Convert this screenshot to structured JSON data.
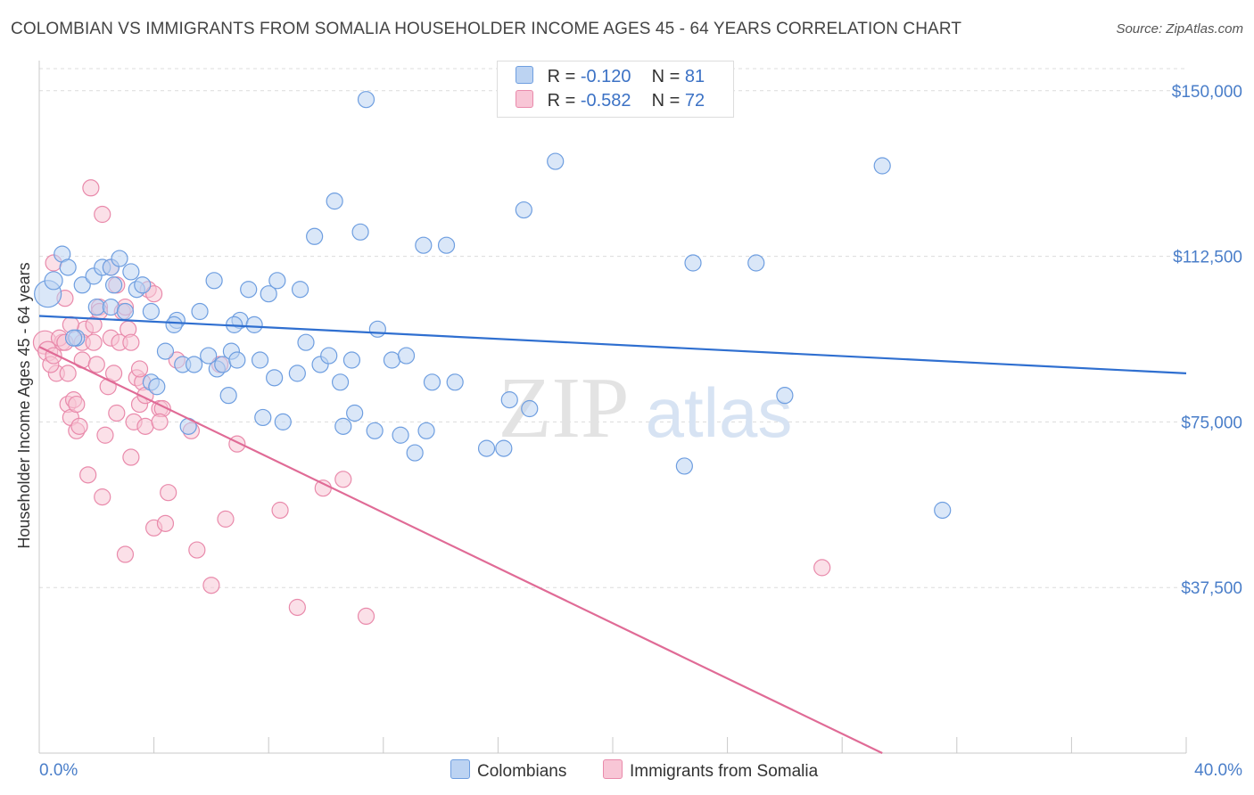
{
  "chart_data": {
    "type": "scatter",
    "title": "COLOMBIAN VS IMMIGRANTS FROM SOMALIA HOUSEHOLDER INCOME AGES 45 - 64 YEARS CORRELATION CHART",
    "source": "Source: ZipAtlas.com",
    "xlabel": "",
    "ylabel": "Householder Income Ages 45 - 64 years",
    "xlim": [
      0,
      40
    ],
    "ylim": [
      0,
      155000
    ],
    "x_tick_labels": {
      "left": "0.0%",
      "right": "40.0%"
    },
    "y_ticks": [
      {
        "value": 37500,
        "label": "$37,500"
      },
      {
        "value": 75000,
        "label": "$75,000"
      },
      {
        "value": 112500,
        "label": "$112,500"
      },
      {
        "value": 150000,
        "label": "$150,000"
      }
    ],
    "watermark": {
      "zip": "ZIP",
      "atlas": "atlas"
    },
    "legend": {
      "r_label": "R =",
      "n_label": "N =",
      "entries": [
        {
          "name": "Colombians",
          "r": "-0.120",
          "n": "81",
          "fill": "#bcd3f2",
          "stroke": "#6e9ee0"
        },
        {
          "name": "Immigrants from Somalia",
          "r": "-0.582",
          "n": "72",
          "fill": "#f8c6d6",
          "stroke": "#e98aab"
        }
      ]
    },
    "series": [
      {
        "name": "Colombians",
        "color": "#6e9ee0",
        "fill": "#bcd3f2",
        "trend": {
          "x": [
            0,
            40
          ],
          "y": [
            99000,
            86000
          ],
          "color": "#2f6fd0"
        },
        "points": [
          [
            0.3,
            104000,
            30
          ],
          [
            0.5,
            107000,
            20
          ],
          [
            0.8,
            113000,
            18
          ],
          [
            1.0,
            110000,
            18
          ],
          [
            1.5,
            106000,
            18
          ],
          [
            1.9,
            108000,
            18
          ],
          [
            2.0,
            101000,
            18
          ],
          [
            2.2,
            110000,
            18
          ],
          [
            2.5,
            110000,
            18
          ],
          [
            2.6,
            106000,
            18
          ],
          [
            2.8,
            112000,
            18
          ],
          [
            2.5,
            101000,
            18
          ],
          [
            3.0,
            100000,
            18
          ],
          [
            3.2,
            109000,
            18
          ],
          [
            3.4,
            105000,
            18
          ],
          [
            3.6,
            106000,
            18
          ],
          [
            3.9,
            100000,
            18
          ],
          [
            1.3,
            94000,
            18
          ],
          [
            4.4,
            91000,
            18
          ],
          [
            4.8,
            98000,
            18
          ],
          [
            4.7,
            97000,
            18
          ],
          [
            5.0,
            88000,
            18
          ],
          [
            5.2,
            74000,
            18
          ],
          [
            5.4,
            88000,
            18
          ],
          [
            5.6,
            100000,
            18
          ],
          [
            5.9,
            90000,
            18
          ],
          [
            6.1,
            107000,
            18
          ],
          [
            6.2,
            87000,
            18
          ],
          [
            6.4,
            88000,
            18
          ],
          [
            6.6,
            81000,
            18
          ],
          [
            6.7,
            91000,
            18
          ],
          [
            6.9,
            89000,
            18
          ],
          [
            7.0,
            98000,
            18
          ],
          [
            7.3,
            105000,
            18
          ],
          [
            7.5,
            97000,
            18
          ],
          [
            7.7,
            89000,
            18
          ],
          [
            7.8,
            76000,
            18
          ],
          [
            8.0,
            104000,
            18
          ],
          [
            8.2,
            85000,
            18
          ],
          [
            8.3,
            107000,
            18
          ],
          [
            8.5,
            75000,
            18
          ],
          [
            9.0,
            86000,
            18
          ],
          [
            9.1,
            105000,
            18
          ],
          [
            9.3,
            93000,
            18
          ],
          [
            9.6,
            117000,
            18
          ],
          [
            9.8,
            88000,
            18
          ],
          [
            10.1,
            90000,
            18
          ],
          [
            10.3,
            125000,
            18
          ],
          [
            10.5,
            84000,
            18
          ],
          [
            10.6,
            74000,
            18
          ],
          [
            10.9,
            89000,
            18
          ],
          [
            11.0,
            77000,
            18
          ],
          [
            11.2,
            118000,
            18
          ],
          [
            11.4,
            148000,
            18
          ],
          [
            11.7,
            73000,
            18
          ],
          [
            11.8,
            96000,
            18
          ],
          [
            12.3,
            89000,
            18
          ],
          [
            12.6,
            72000,
            18
          ],
          [
            12.8,
            90000,
            18
          ],
          [
            13.1,
            68000,
            18
          ],
          [
            13.4,
            115000,
            18
          ],
          [
            13.5,
            73000,
            18
          ],
          [
            13.7,
            84000,
            18
          ],
          [
            14.2,
            115000,
            18
          ],
          [
            14.5,
            84000,
            18
          ],
          [
            15.6,
            69000,
            18
          ],
          [
            16.2,
            69000,
            18
          ],
          [
            16.4,
            80000,
            18
          ],
          [
            16.9,
            123000,
            18
          ],
          [
            17.1,
            78000,
            18
          ],
          [
            18.0,
            134000,
            18
          ],
          [
            22.5,
            65000,
            18
          ],
          [
            22.8,
            111000,
            18
          ],
          [
            25.0,
            111000,
            18
          ],
          [
            26.0,
            81000,
            18
          ],
          [
            29.4,
            133000,
            18
          ],
          [
            31.5,
            55000,
            18
          ],
          [
            3.9,
            84000,
            18
          ],
          [
            4.1,
            83000,
            18
          ],
          [
            1.2,
            94000,
            18
          ],
          [
            6.8,
            97000,
            18
          ]
        ]
      },
      {
        "name": "Immigrants from Somalia",
        "color": "#e98aab",
        "fill": "#f8c6d6",
        "trend": {
          "x": [
            0,
            29.4
          ],
          "y": [
            92000,
            0
          ],
          "color": "#e06b96"
        },
        "points": [
          [
            0.2,
            93000,
            26
          ],
          [
            0.3,
            91000,
            22
          ],
          [
            0.5,
            111000,
            18
          ],
          [
            0.6,
            86000,
            18
          ],
          [
            0.8,
            93000,
            18
          ],
          [
            0.9,
            103000,
            18
          ],
          [
            1.0,
            79000,
            18
          ],
          [
            1.1,
            76000,
            18
          ],
          [
            1.2,
            80000,
            18
          ],
          [
            1.3,
            73000,
            18
          ],
          [
            1.4,
            74000,
            18
          ],
          [
            1.5,
            89000,
            18
          ],
          [
            1.6,
            96000,
            18
          ],
          [
            1.7,
            63000,
            18
          ],
          [
            1.8,
            128000,
            18
          ],
          [
            1.9,
            97000,
            18
          ],
          [
            2.0,
            88000,
            18
          ],
          [
            2.1,
            101000,
            18
          ],
          [
            2.2,
            58000,
            18
          ],
          [
            2.3,
            72000,
            18
          ],
          [
            2.4,
            83000,
            18
          ],
          [
            2.5,
            94000,
            18
          ],
          [
            2.6,
            86000,
            18
          ],
          [
            2.7,
            77000,
            18
          ],
          [
            2.8,
            93000,
            18
          ],
          [
            2.9,
            100000,
            18
          ],
          [
            3.0,
            45000,
            18
          ],
          [
            3.1,
            96000,
            18
          ],
          [
            3.2,
            67000,
            18
          ],
          [
            3.3,
            75000,
            18
          ],
          [
            3.4,
            85000,
            18
          ],
          [
            3.5,
            79000,
            18
          ],
          [
            3.6,
            84000,
            18
          ],
          [
            3.7,
            74000,
            18
          ],
          [
            3.8,
            105000,
            18
          ],
          [
            4.0,
            51000,
            18
          ],
          [
            4.2,
            78000,
            18
          ],
          [
            4.4,
            52000,
            18
          ],
          [
            4.5,
            59000,
            18
          ],
          [
            4.8,
            89000,
            18
          ],
          [
            5.3,
            73000,
            18
          ],
          [
            5.5,
            46000,
            18
          ],
          [
            6.0,
            38000,
            18
          ],
          [
            6.3,
            88000,
            18
          ],
          [
            6.5,
            53000,
            18
          ],
          [
            6.9,
            70000,
            18
          ],
          [
            8.4,
            55000,
            18
          ],
          [
            9.0,
            33000,
            18
          ],
          [
            9.9,
            60000,
            18
          ],
          [
            10.6,
            62000,
            18
          ],
          [
            11.4,
            31000,
            18
          ],
          [
            27.3,
            42000,
            18
          ],
          [
            0.4,
            88000,
            18
          ],
          [
            0.7,
            94000,
            18
          ],
          [
            1.0,
            86000,
            18
          ],
          [
            1.3,
            79000,
            18
          ],
          [
            1.5,
            93000,
            18
          ],
          [
            1.9,
            93000,
            18
          ],
          [
            2.2,
            122000,
            18
          ],
          [
            2.5,
            110000,
            18
          ],
          [
            2.7,
            106000,
            18
          ],
          [
            3.0,
            101000,
            18
          ],
          [
            3.2,
            93000,
            18
          ],
          [
            3.5,
            87000,
            18
          ],
          [
            3.7,
            81000,
            18
          ],
          [
            4.0,
            104000,
            18
          ],
          [
            4.3,
            78000,
            18
          ],
          [
            0.5,
            90000,
            18
          ],
          [
            0.9,
            93000,
            18
          ],
          [
            1.1,
            97000,
            18
          ],
          [
            2.1,
            100000,
            18
          ],
          [
            4.2,
            75000,
            18
          ]
        ]
      }
    ]
  }
}
